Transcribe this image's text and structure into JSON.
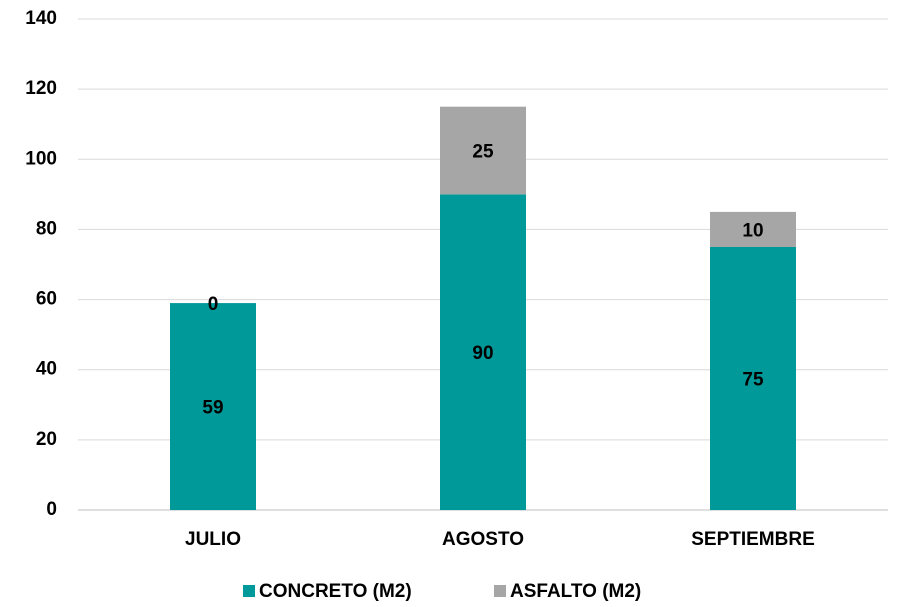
{
  "chart_data": {
    "type": "stacked_bar",
    "categories": [
      "JULIO",
      "AGOSTO",
      "SEPTIEMBRE"
    ],
    "series": [
      {
        "name": "CONCRETO (M2)",
        "color": "#009999",
        "values": [
          59,
          90,
          75
        ]
      },
      {
        "name": "ASFALTO (M2)",
        "color": "#a6a6a6",
        "values": [
          0,
          25,
          10
        ]
      }
    ],
    "ylim": [
      0,
      140
    ],
    "yticks": [
      0,
      20,
      40,
      60,
      80,
      100,
      120,
      140
    ],
    "grid": true,
    "legend": "bottom"
  }
}
